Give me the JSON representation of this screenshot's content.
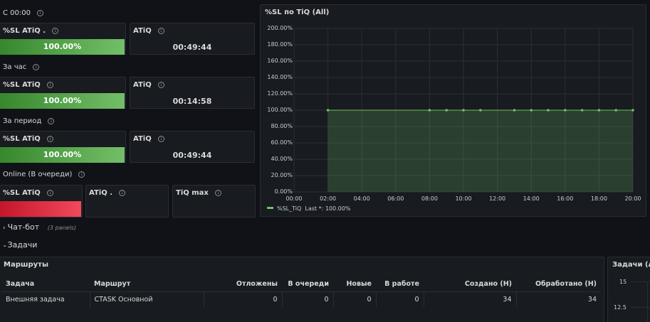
{
  "groups": {
    "since_midnight": {
      "label": "С 00:00"
    },
    "hour": {
      "label": "За час"
    },
    "period": {
      "label": "За период"
    },
    "online": {
      "label": "Online (В очереди)"
    }
  },
  "stats": {
    "sl1": {
      "title": "%SL ATiQ .",
      "value": "100.00%",
      "fill": 1.0
    },
    "atiq1": {
      "title": "ATiQ",
      "value": "00:49:44"
    },
    "sl2": {
      "title": "%SL ATiQ",
      "value": "100.00%",
      "fill": 1.0
    },
    "atiq2": {
      "title": "ATiQ",
      "value": "00:14:58"
    },
    "sl3": {
      "title": "%SL ATiQ",
      "value": "100.00%",
      "fill": 1.0
    },
    "atiq3": {
      "title": "ATiQ",
      "value": "00:49:44"
    },
    "sl4": {
      "title": "%SL ATiQ",
      "color": "#f2495c"
    },
    "atiq4": {
      "title": "ATiQ ."
    },
    "tiqmax": {
      "title": "TiQ max"
    }
  },
  "chart_panel": {
    "title": "%SL по TiQ (All)"
  },
  "chart_data": {
    "type": "area",
    "title": "%SL по TiQ (All)",
    "x_ticks": [
      "00:00",
      "02:00",
      "04:00",
      "06:00",
      "08:00",
      "10:00",
      "12:00",
      "14:00",
      "16:00",
      "18:00",
      "20:00"
    ],
    "y_ticks": [
      "0.00%",
      "20.00%",
      "40.00%",
      "60.00%",
      "80.00%",
      "100.00%",
      "120.00%",
      "140.00%",
      "160.00%",
      "180.00%",
      "200.00%"
    ],
    "ylim": [
      0,
      200
    ],
    "xlim_hours": [
      0,
      20
    ],
    "grid": true,
    "legend_position": "bottom-left",
    "series": [
      {
        "name": "%SL_TiQ",
        "color": "#73bf69",
        "x": [
          "02:00",
          "08:00",
          "09:00",
          "10:00",
          "11:00",
          "13:00",
          "14:00",
          "15:00",
          "16:00",
          "17:00",
          "18:00",
          "19:00",
          "20:00"
        ],
        "y": [
          100,
          100,
          100,
          100,
          100,
          100,
          100,
          100,
          100,
          100,
          100,
          100,
          100
        ],
        "legend_last": "Last *: 100.00%"
      }
    ]
  },
  "collapsed_row": {
    "title": "Чат-бот",
    "count": "(3 panels)"
  },
  "expanded_row": {
    "title": "Задачи"
  },
  "routes": {
    "title": "Маршруты",
    "columns": [
      "Задача",
      "Маршрут",
      "Отложены",
      "В очереди",
      "Новые",
      "В работе",
      "Создано (Н)",
      "Обработано (Н)"
    ],
    "rows": [
      [
        "Внешняя задача",
        "CTASK Основной",
        "0",
        "0",
        "0",
        "0",
        "34",
        "34"
      ]
    ]
  },
  "tasks_panel": {
    "title": "Задачи (All)",
    "y_ticks": [
      "15",
      "12.5"
    ]
  },
  "info_glyph": "i"
}
